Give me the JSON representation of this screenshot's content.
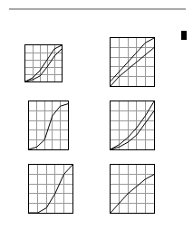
{
  "chart_data": [
    {
      "type": "line",
      "xlim": [
        0,
        10
      ],
      "ylim": [
        0,
        10
      ],
      "xticks": [
        0,
        2,
        4,
        6,
        8,
        10
      ],
      "yticks": [
        0,
        2,
        4,
        6,
        8,
        10
      ],
      "grid": true,
      "tick_labels": false,
      "x": [
        0,
        2,
        4,
        6,
        8,
        10
      ],
      "series": [
        {
          "color": "#000000",
          "values": [
            0,
            1,
            3,
            6,
            9,
            10
          ]
        },
        {
          "color": "#000000",
          "values": [
            0,
            0.5,
            1.5,
            4,
            7,
            9
          ]
        }
      ]
    },
    {
      "type": "line",
      "xlim": [
        0,
        10
      ],
      "ylim": [
        0,
        10
      ],
      "xticks": [
        0,
        2,
        4,
        6,
        8,
        10
      ],
      "yticks": [
        0,
        2,
        4,
        6,
        8,
        10
      ],
      "grid": true,
      "tick_labels": false,
      "x": [
        0,
        2,
        4,
        6,
        8,
        10
      ],
      "series": [
        {
          "color": "#000000",
          "values": [
            1,
            3,
            5,
            7,
            9,
            10
          ]
        },
        {
          "color": "#000000",
          "values": [
            0,
            2,
            3.5,
            5,
            6.5,
            8
          ]
        }
      ]
    },
    {
      "type": "line",
      "xlim": [
        0,
        10
      ],
      "ylim": [
        0,
        10
      ],
      "xticks": [
        0,
        2,
        4,
        6,
        8,
        10
      ],
      "yticks": [
        0,
        2,
        4,
        6,
        8,
        10
      ],
      "grid": true,
      "tick_labels": false,
      "x": [
        0,
        2,
        4,
        6,
        8,
        10
      ],
      "series": [
        {
          "color": "#000000",
          "values": [
            0,
            0.5,
            2,
            7,
            9,
            9.5
          ]
        }
      ]
    },
    {
      "type": "line",
      "xlim": [
        0,
        10
      ],
      "ylim": [
        0,
        10
      ],
      "xticks": [
        0,
        2,
        4,
        6,
        8,
        10
      ],
      "yticks": [
        0,
        2,
        4,
        6,
        8,
        10
      ],
      "grid": true,
      "tick_labels": false,
      "x": [
        0,
        2,
        4,
        6,
        8,
        10
      ],
      "series": [
        {
          "color": "#000000",
          "values": [
            0,
            1,
            2.5,
            4.5,
            7,
            10
          ]
        },
        {
          "color": "#000000",
          "values": [
            0,
            0.5,
            1.5,
            3,
            5.5,
            8
          ]
        }
      ]
    },
    {
      "type": "line",
      "xlim": [
        0,
        10
      ],
      "ylim": [
        0,
        10
      ],
      "xticks": [
        0,
        2,
        4,
        6,
        8,
        10
      ],
      "yticks": [
        0,
        2,
        4,
        6,
        8,
        10
      ],
      "grid": true,
      "tick_labels": false,
      "x": [
        0,
        2,
        4,
        6,
        8,
        10
      ],
      "series": [
        {
          "color": "#000000",
          "values": [
            0,
            0,
            1,
            4,
            8,
            10
          ]
        }
      ]
    },
    {
      "type": "line",
      "xlim": [
        0,
        10
      ],
      "ylim": [
        0,
        10
      ],
      "xticks": [
        0,
        2,
        4,
        6,
        8,
        10
      ],
      "yticks": [
        0,
        2,
        4,
        6,
        8,
        10
      ],
      "grid": true,
      "tick_labels": false,
      "x": [
        0,
        2,
        4,
        6,
        8,
        10
      ],
      "series": [
        {
          "color": "#000000",
          "values": [
            0,
            2,
            4,
            5.5,
            7,
            8
          ]
        }
      ]
    }
  ]
}
